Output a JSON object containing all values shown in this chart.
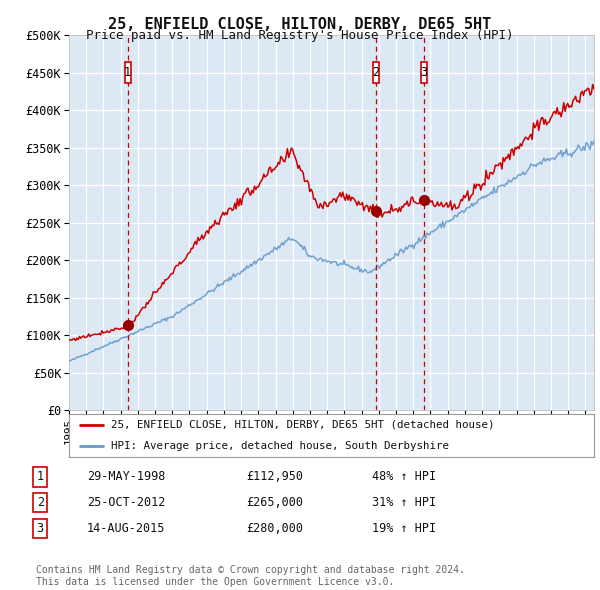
{
  "title": "25, ENFIELD CLOSE, HILTON, DERBY, DE65 5HT",
  "subtitle": "Price paid vs. HM Land Registry's House Price Index (HPI)",
  "fig_facecolor": "#ffffff",
  "plot_bg_color": "#dce9f5",
  "grid_color": "#ffffff",
  "red_line_color": "#cc0000",
  "blue_line_color": "#6699cc",
  "marker_color": "#990000",
  "vline_color": "#cc0000",
  "ylim": [
    0,
    500000
  ],
  "yticks": [
    0,
    50000,
    100000,
    150000,
    200000,
    250000,
    300000,
    350000,
    400000,
    450000,
    500000
  ],
  "ytick_labels": [
    "£0",
    "£50K",
    "£100K",
    "£150K",
    "£200K",
    "£250K",
    "£300K",
    "£350K",
    "£400K",
    "£450K",
    "£500K"
  ],
  "xlim_start": 1995.0,
  "xlim_end": 2025.5,
  "sale_points": [
    {
      "year": 1998.41,
      "price": 112950,
      "label": "1"
    },
    {
      "year": 2012.81,
      "price": 265000,
      "label": "2"
    },
    {
      "year": 2015.62,
      "price": 280000,
      "label": "3"
    }
  ],
  "legend_entries": [
    "25, ENFIELD CLOSE, HILTON, DERBY, DE65 5HT (detached house)",
    "HPI: Average price, detached house, South Derbyshire"
  ],
  "table_rows": [
    {
      "num": "1",
      "date": "29-MAY-1998",
      "price": "£112,950",
      "change": "48% ↑ HPI"
    },
    {
      "num": "2",
      "date": "25-OCT-2012",
      "price": "£265,000",
      "change": "31% ↑ HPI"
    },
    {
      "num": "3",
      "date": "14-AUG-2015",
      "price": "£280,000",
      "change": "19% ↑ HPI"
    }
  ],
  "footer": "Contains HM Land Registry data © Crown copyright and database right 2024.\nThis data is licensed under the Open Government Licence v3.0."
}
